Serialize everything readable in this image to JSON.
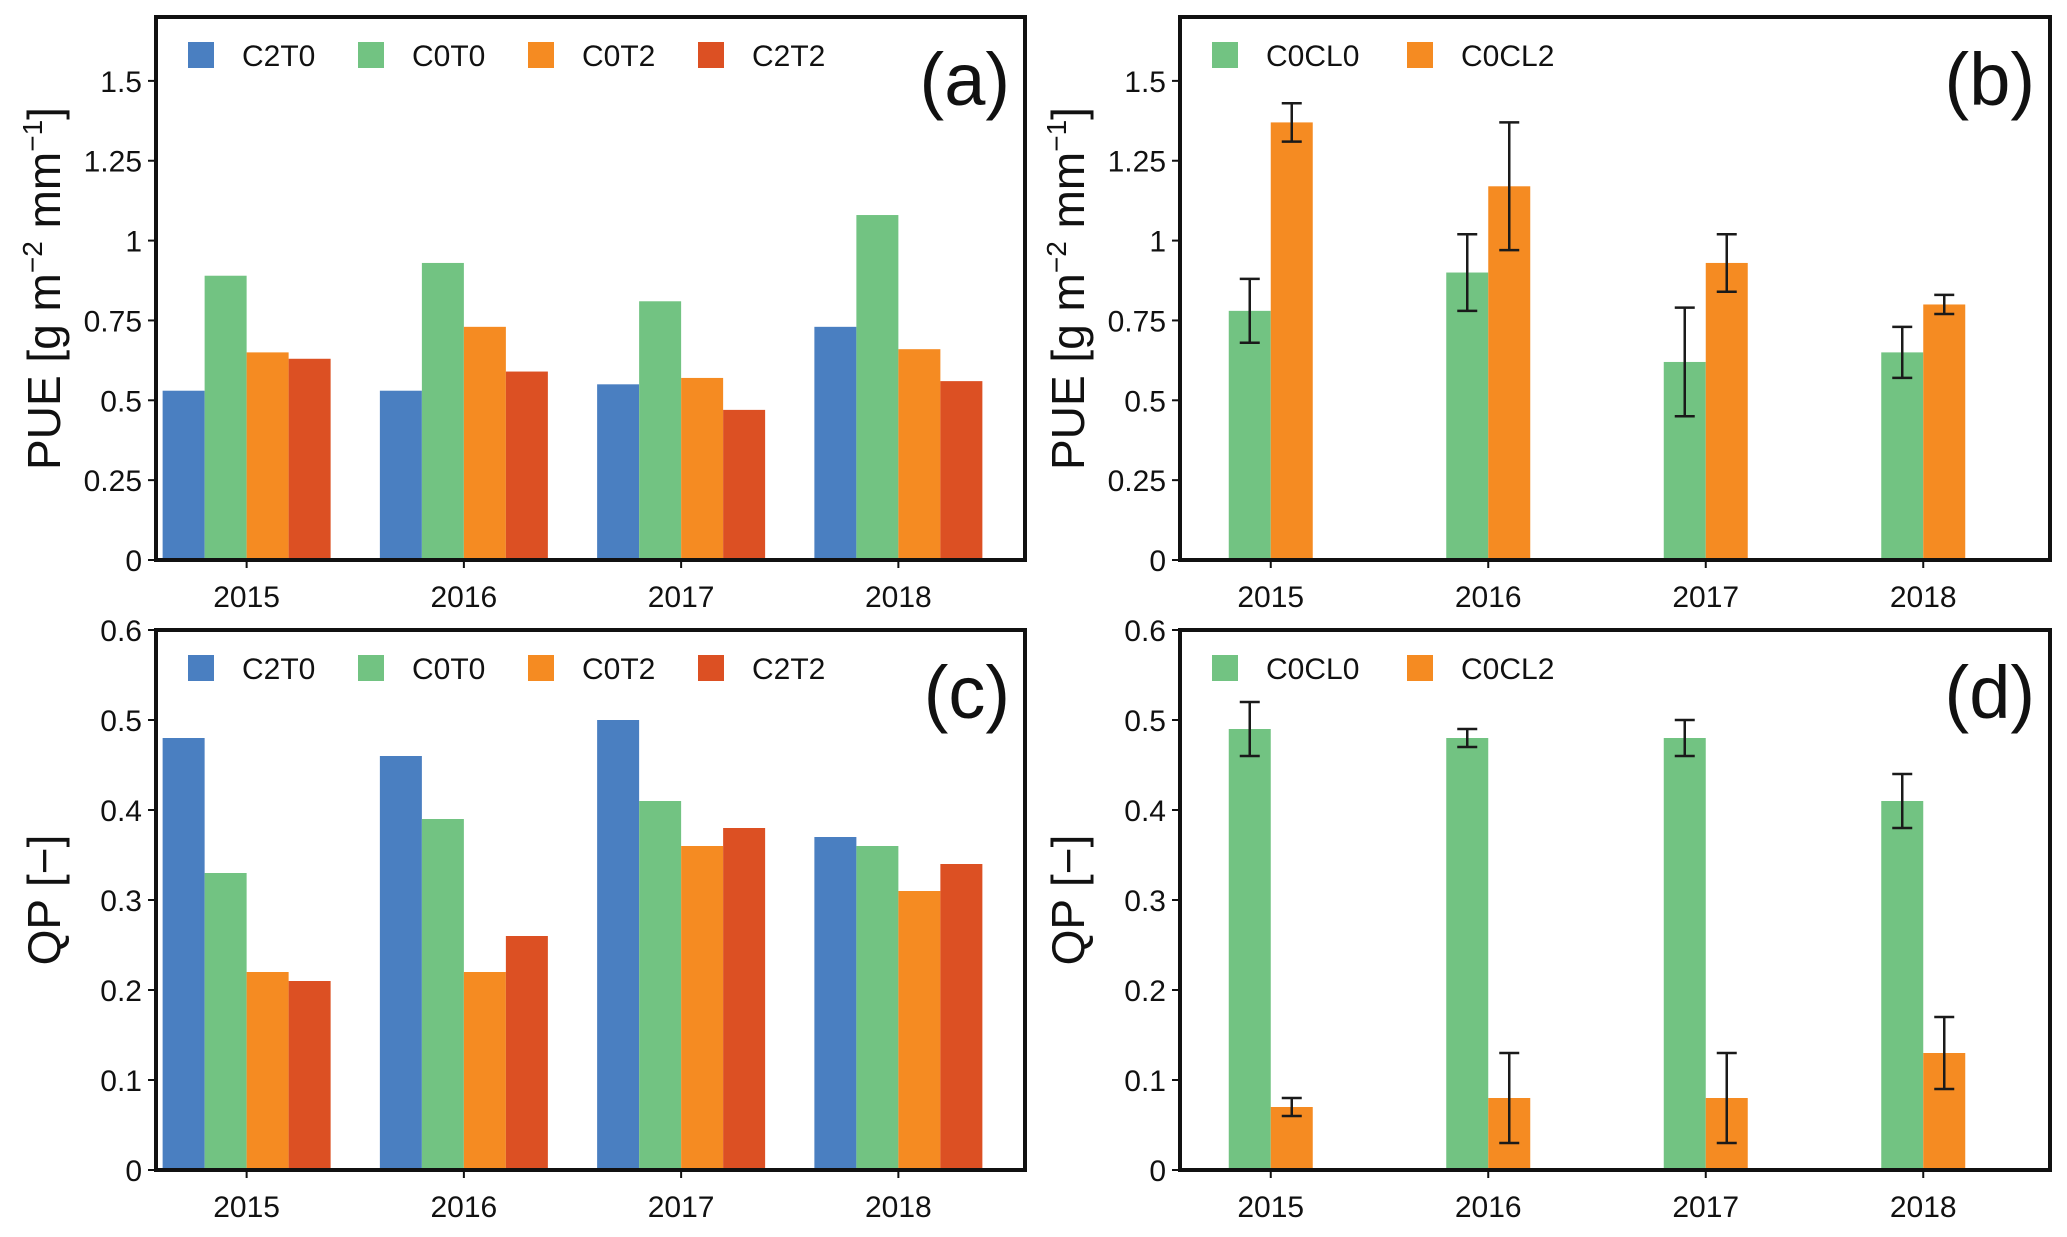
{
  "chart_data": [
    {
      "panel": "(a)",
      "type": "bar",
      "categories": [
        "2015",
        "2016",
        "2017",
        "2018"
      ],
      "series": [
        {
          "name": "C2T0",
          "color": "#4a7fc1",
          "values": [
            0.53,
            0.53,
            0.55,
            0.73
          ]
        },
        {
          "name": "C0T0",
          "color": "#72c382",
          "values": [
            0.89,
            0.93,
            0.81,
            1.08
          ]
        },
        {
          "name": "C0T2",
          "color": "#f58b22",
          "values": [
            0.65,
            0.73,
            0.57,
            0.66
          ]
        },
        {
          "name": "C2T2",
          "color": "#dc5023",
          "values": [
            0.63,
            0.59,
            0.47,
            0.56
          ]
        }
      ],
      "xlabel": "",
      "ylabel": "PUE [g m⁻² mm⁻¹]",
      "ylabel_parts": {
        "main": "PUE [g m",
        "sup1": "−2",
        "mid": " mm",
        "sup2": "−1",
        "end": "]"
      },
      "ylim": [
        0,
        1.7
      ],
      "yticks": [
        0,
        0.25,
        0.5,
        0.75,
        1,
        1.25,
        1.5
      ],
      "ytick_labels": [
        "0",
        "0.25",
        "0.5",
        "0.75",
        "1",
        "1.25",
        "1.5"
      ],
      "legend": "top-left",
      "grid": false
    },
    {
      "panel": "(b)",
      "type": "bar",
      "categories": [
        "2015",
        "2016",
        "2017",
        "2018"
      ],
      "series": [
        {
          "name": "C0CL0",
          "color": "#72c382",
          "values": [
            0.78,
            0.9,
            0.62,
            0.65
          ],
          "error_low": [
            0.68,
            0.78,
            0.45,
            0.57
          ],
          "error_high": [
            0.88,
            1.02,
            0.79,
            0.73
          ]
        },
        {
          "name": "C0CL2",
          "color": "#f58b22",
          "values": [
            1.37,
            1.17,
            0.93,
            0.8
          ],
          "error_low": [
            1.31,
            0.97,
            0.84,
            0.77
          ],
          "error_high": [
            1.43,
            1.37,
            1.02,
            0.83
          ]
        }
      ],
      "xlabel": "",
      "ylabel": "PUE [g m⁻² mm⁻¹]",
      "ylabel_parts": {
        "main": "PUE [g m",
        "sup1": "−2",
        "mid": " mm",
        "sup2": "−1",
        "end": "]"
      },
      "ylim": [
        0,
        1.7
      ],
      "yticks": [
        0,
        0.25,
        0.5,
        0.75,
        1,
        1.25,
        1.5
      ],
      "ytick_labels": [
        "0",
        "0.25",
        "0.5",
        "0.75",
        "1",
        "1.25",
        "1.5"
      ],
      "legend": "top-left",
      "grid": false
    },
    {
      "panel": "(c)",
      "type": "bar",
      "categories": [
        "2015",
        "2016",
        "2017",
        "2018"
      ],
      "series": [
        {
          "name": "C2T0",
          "color": "#4a7fc1",
          "values": [
            0.48,
            0.46,
            0.5,
            0.37
          ]
        },
        {
          "name": "C0T0",
          "color": "#72c382",
          "values": [
            0.33,
            0.39,
            0.41,
            0.36
          ]
        },
        {
          "name": "C0T2",
          "color": "#f58b22",
          "values": [
            0.22,
            0.22,
            0.36,
            0.31
          ]
        },
        {
          "name": "C2T2",
          "color": "#dc5023",
          "values": [
            0.21,
            0.26,
            0.38,
            0.34
          ]
        }
      ],
      "xlabel": "",
      "ylabel": "QP [−]",
      "ylabel_parts": {
        "main": "QP [−]",
        "sup1": "",
        "mid": "",
        "sup2": "",
        "end": ""
      },
      "ylim": [
        0,
        0.6
      ],
      "yticks": [
        0,
        0.1,
        0.2,
        0.3,
        0.4,
        0.5,
        0.6
      ],
      "ytick_labels": [
        "0",
        "0.1",
        "0.2",
        "0.3",
        "0.4",
        "0.5",
        "0.6"
      ],
      "legend": "top-left",
      "grid": false
    },
    {
      "panel": "(d)",
      "type": "bar",
      "categories": [
        "2015",
        "2016",
        "2017",
        "2018"
      ],
      "series": [
        {
          "name": "C0CL0",
          "color": "#72c382",
          "values": [
            0.49,
            0.48,
            0.48,
            0.41
          ],
          "error_low": [
            0.46,
            0.47,
            0.46,
            0.38
          ],
          "error_high": [
            0.52,
            0.49,
            0.5,
            0.44
          ]
        },
        {
          "name": "C0CL2",
          "color": "#f58b22",
          "values": [
            0.07,
            0.08,
            0.08,
            0.13
          ],
          "error_low": [
            0.06,
            0.03,
            0.03,
            0.09
          ],
          "error_high": [
            0.08,
            0.13,
            0.13,
            0.17
          ]
        }
      ],
      "xlabel": "",
      "ylabel": "QP [−]",
      "ylabel_parts": {
        "main": "QP [−]",
        "sup1": "",
        "mid": "",
        "sup2": "",
        "end": ""
      },
      "ylim": [
        0,
        0.6
      ],
      "yticks": [
        0,
        0.1,
        0.2,
        0.3,
        0.4,
        0.5,
        0.6
      ],
      "ytick_labels": [
        "0",
        "0.1",
        "0.2",
        "0.3",
        "0.4",
        "0.5",
        "0.6"
      ],
      "legend": "top-left",
      "grid": false
    }
  ]
}
